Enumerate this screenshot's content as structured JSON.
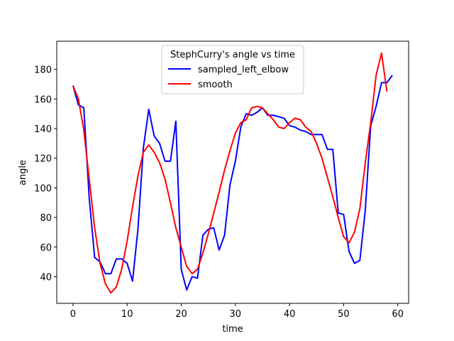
{
  "chart_data": {
    "type": "line",
    "title": "",
    "xlabel": "time",
    "ylabel": "angle",
    "xlim": [
      -3,
      62
    ],
    "ylim": [
      22,
      199
    ],
    "xticks": [
      0,
      10,
      20,
      30,
      40,
      50,
      60
    ],
    "yticks": [
      40,
      60,
      80,
      100,
      120,
      140,
      160,
      180
    ],
    "legend": {
      "title": "StephCurry's angle vs time",
      "position": "top-center"
    },
    "grid": false,
    "series": [
      {
        "name": "sampled_left_elbow",
        "color": "#0000ff",
        "x": [
          0,
          1,
          2,
          3,
          4,
          5,
          6,
          7,
          8,
          9,
          10,
          11,
          12,
          13,
          14,
          15,
          16,
          17,
          18,
          19,
          20,
          21,
          22,
          23,
          24,
          25,
          26,
          27,
          28,
          29,
          30,
          31,
          32,
          33,
          34,
          35,
          36,
          37,
          38,
          39,
          40,
          41,
          42,
          43,
          44,
          45,
          46,
          47,
          48,
          49,
          50,
          51,
          52,
          53,
          54,
          55,
          56,
          57,
          58,
          59
        ],
        "y": [
          169,
          156,
          154,
          93,
          53,
          50,
          42,
          42,
          52,
          52,
          49,
          37,
          72,
          127,
          153,
          135,
          130,
          118,
          118,
          145,
          45,
          31,
          40,
          39,
          68,
          72,
          73,
          58,
          68,
          102,
          118,
          141,
          150,
          149,
          151,
          154,
          149,
          149,
          148,
          147,
          142,
          141,
          139,
          138,
          136,
          136,
          136,
          126,
          126,
          83,
          82,
          57,
          49,
          51,
          85,
          142,
          155,
          171,
          171,
          176
        ]
      },
      {
        "name": "smooth",
        "color": "#ff0000",
        "x": [
          0,
          1,
          2,
          3,
          4,
          5,
          6,
          7,
          8,
          9,
          10,
          11,
          12,
          13,
          14,
          15,
          16,
          17,
          18,
          19,
          20,
          21,
          22,
          23,
          24,
          25,
          26,
          27,
          28,
          29,
          30,
          31,
          32,
          33,
          34,
          35,
          36,
          37,
          38,
          39,
          40,
          41,
          42,
          43,
          44,
          45,
          46,
          47,
          48,
          49,
          50,
          51,
          52,
          53,
          54,
          55,
          56,
          57,
          58,
          59
        ],
        "y": [
          169,
          160,
          139,
          106,
          73,
          49,
          35,
          29,
          33,
          45,
          64,
          87,
          108,
          124,
          129,
          124,
          117,
          106,
          90,
          73,
          60,
          47,
          42,
          45,
          56,
          69,
          83,
          97,
          112,
          125,
          137,
          144,
          146,
          154,
          155,
          154,
          150,
          146,
          141,
          140,
          144,
          147,
          146,
          141,
          138,
          130,
          120,
          107,
          94,
          80,
          67,
          63,
          70,
          86,
          117,
          144,
          176,
          191,
          165,
          null
        ]
      }
    ]
  }
}
